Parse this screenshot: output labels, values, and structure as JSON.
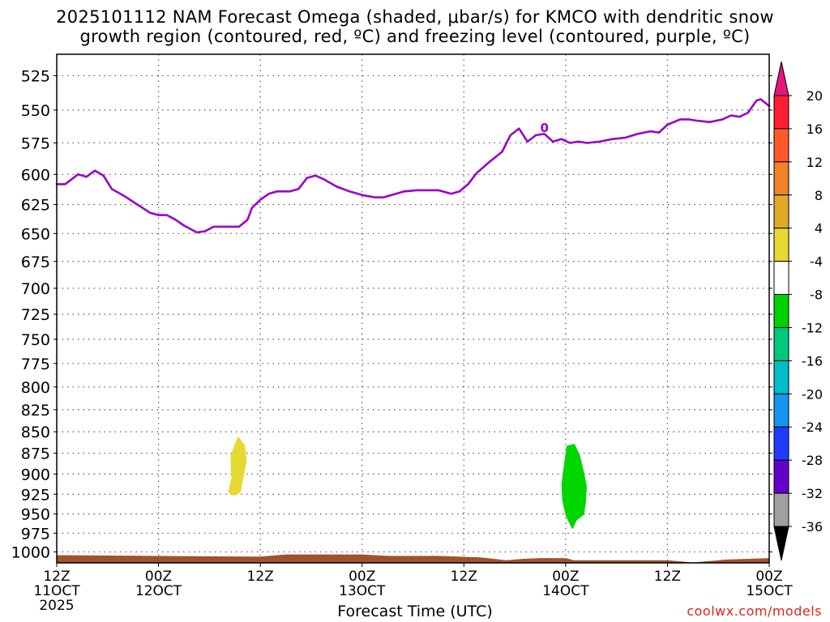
{
  "title": {
    "line1": "2025101112 NAM Forecast Omega (shaded, μbar/s) for KMCO with dendritic snow",
    "line2": "growth region (contoured, red, ºC) and freezing level (contoured, purple, ºC)"
  },
  "credit": "coolwx.com/models",
  "chart_data": {
    "type": "time-height cross section",
    "xlabel": "Forecast Time (UTC)",
    "ylabel": "",
    "x_ticks": [
      {
        "line1": "12Z",
        "line2": "11OCT",
        "line3": "2025",
        "hours": 0
      },
      {
        "line1": "00Z",
        "line2": "12OCT",
        "line3": "",
        "hours": 12
      },
      {
        "line1": "12Z",
        "line2": "",
        "line3": "",
        "hours": 24
      },
      {
        "line1": "00Z",
        "line2": "13OCT",
        "line3": "",
        "hours": 36
      },
      {
        "line1": "12Z",
        "line2": "",
        "line3": "",
        "hours": 48
      },
      {
        "line1": "00Z",
        "line2": "14OCT",
        "line3": "",
        "hours": 60
      },
      {
        "line1": "12Z",
        "line2": "",
        "line3": "",
        "hours": 72
      },
      {
        "line1": "00Z",
        "line2": "15OCT",
        "line3": "",
        "hours": 84
      }
    ],
    "x_range_hours": [
      0,
      84
    ],
    "y_ticks": [
      525,
      550,
      575,
      600,
      625,
      650,
      675,
      700,
      725,
      750,
      775,
      800,
      825,
      850,
      875,
      900,
      925,
      950,
      975,
      1000
    ],
    "y_range_mb": [
      510,
      1015
    ],
    "y_scale": "log-pressure, inverted",
    "grid": "dotted",
    "freezing_level": {
      "color": "#9b00c8",
      "label": "0",
      "points": [
        [
          0,
          608
        ],
        [
          1,
          608
        ],
        [
          2.5,
          600
        ],
        [
          3.5,
          602
        ],
        [
          4.5,
          597
        ],
        [
          5.5,
          601
        ],
        [
          6.5,
          612
        ],
        [
          8,
          618
        ],
        [
          9.5,
          625
        ],
        [
          11,
          632
        ],
        [
          12,
          634
        ],
        [
          13,
          634
        ],
        [
          14,
          638
        ],
        [
          15,
          643
        ],
        [
          16.5,
          649
        ],
        [
          17.5,
          648
        ],
        [
          18.5,
          644
        ],
        [
          20,
          644
        ],
        [
          21.5,
          644
        ],
        [
          22.5,
          638
        ],
        [
          23,
          628
        ],
        [
          24,
          621
        ],
        [
          25,
          616
        ],
        [
          26,
          614
        ],
        [
          27.5,
          614
        ],
        [
          28.5,
          612
        ],
        [
          29.5,
          603
        ],
        [
          30.5,
          601
        ],
        [
          31.5,
          604
        ],
        [
          33,
          610
        ],
        [
          34.5,
          614
        ],
        [
          36,
          617
        ],
        [
          37.5,
          619
        ],
        [
          38.5,
          619
        ],
        [
          39.5,
          617
        ],
        [
          41,
          614
        ],
        [
          42.5,
          613
        ],
        [
          45,
          613
        ],
        [
          46.5,
          616
        ],
        [
          47.5,
          614
        ],
        [
          48.5,
          608
        ],
        [
          49.5,
          599
        ],
        [
          51,
          590
        ],
        [
          52.5,
          582
        ],
        [
          53.5,
          569
        ],
        [
          54.5,
          564
        ],
        [
          55.5,
          574
        ],
        [
          56.5,
          569
        ],
        [
          57.5,
          568
        ],
        [
          58.5,
          574
        ],
        [
          59.5,
          572
        ],
        [
          60.5,
          575
        ],
        [
          61.5,
          574
        ],
        [
          62.5,
          575
        ],
        [
          64,
          574
        ],
        [
          65.5,
          572
        ],
        [
          67,
          571
        ],
        [
          68.5,
          568
        ],
        [
          70,
          566
        ],
        [
          71,
          567
        ],
        [
          72,
          561
        ],
        [
          73.5,
          557
        ],
        [
          74.5,
          557
        ],
        [
          75.5,
          558
        ],
        [
          77,
          559
        ],
        [
          78.5,
          557
        ],
        [
          79.5,
          554
        ],
        [
          80.5,
          555
        ],
        [
          81.5,
          552
        ],
        [
          82.5,
          543
        ],
        [
          83,
          542
        ],
        [
          84,
          547
        ]
      ]
    },
    "omega_features": [
      {
        "name": "positive omega (+4 to +8)",
        "color": "#e6d932",
        "points": [
          [
            20.6,
            877
          ],
          [
            21.4,
            857
          ],
          [
            22.1,
            866
          ],
          [
            22.3,
            885
          ],
          [
            21.9,
            905
          ],
          [
            21.6,
            922
          ],
          [
            20.9,
            926
          ],
          [
            20.3,
            922
          ],
          [
            20.7,
            905
          ],
          [
            20.6,
            890
          ]
        ]
      },
      {
        "name": "negative omega (-4 to -8)",
        "color": "#00d600",
        "points": [
          [
            60.2,
            867
          ],
          [
            61.0,
            865
          ],
          [
            61.6,
            878
          ],
          [
            62.0,
            895
          ],
          [
            62.4,
            915
          ],
          [
            62.3,
            935
          ],
          [
            62.1,
            950
          ],
          [
            61.2,
            958
          ],
          [
            60.8,
            968
          ],
          [
            60.1,
            952
          ],
          [
            59.7,
            933
          ],
          [
            59.6,
            912
          ],
          [
            59.9,
            889
          ]
        ]
      }
    ],
    "terrain": {
      "color": "#a0522d",
      "top_mb": [
        [
          0,
          1005
        ],
        [
          24,
          1007
        ],
        [
          27,
          1004
        ],
        [
          36,
          1004
        ],
        [
          39,
          1006
        ],
        [
          45,
          1006
        ],
        [
          50,
          1008
        ],
        [
          53,
          1012
        ],
        [
          55,
          1010
        ],
        [
          57,
          1009
        ],
        [
          60,
          1009
        ],
        [
          61,
          1012
        ],
        [
          72,
          1012
        ],
        [
          75,
          1015
        ],
        [
          79,
          1011
        ],
        [
          84,
          1009
        ]
      ]
    },
    "colorbar": {
      "labels": [
        "20",
        "16",
        "12",
        "8",
        "4",
        "-4",
        "-8",
        "-12",
        "-16",
        "-20",
        "-24",
        "-28",
        "-32",
        "-36"
      ],
      "colors": [
        "#ff1e32",
        "#ff5a28",
        "#f08228",
        "#e0aa28",
        "#e6d932",
        "#ffffff",
        "#00d200",
        "#00c87d",
        "#00bec8",
        "#1496f0",
        "#1e3cff",
        "#6400c8",
        "#a000c8",
        "#a0a0a0"
      ],
      "top_arrow_color": "#e6147d",
      "bottom_arrow_color": "#000000"
    }
  }
}
